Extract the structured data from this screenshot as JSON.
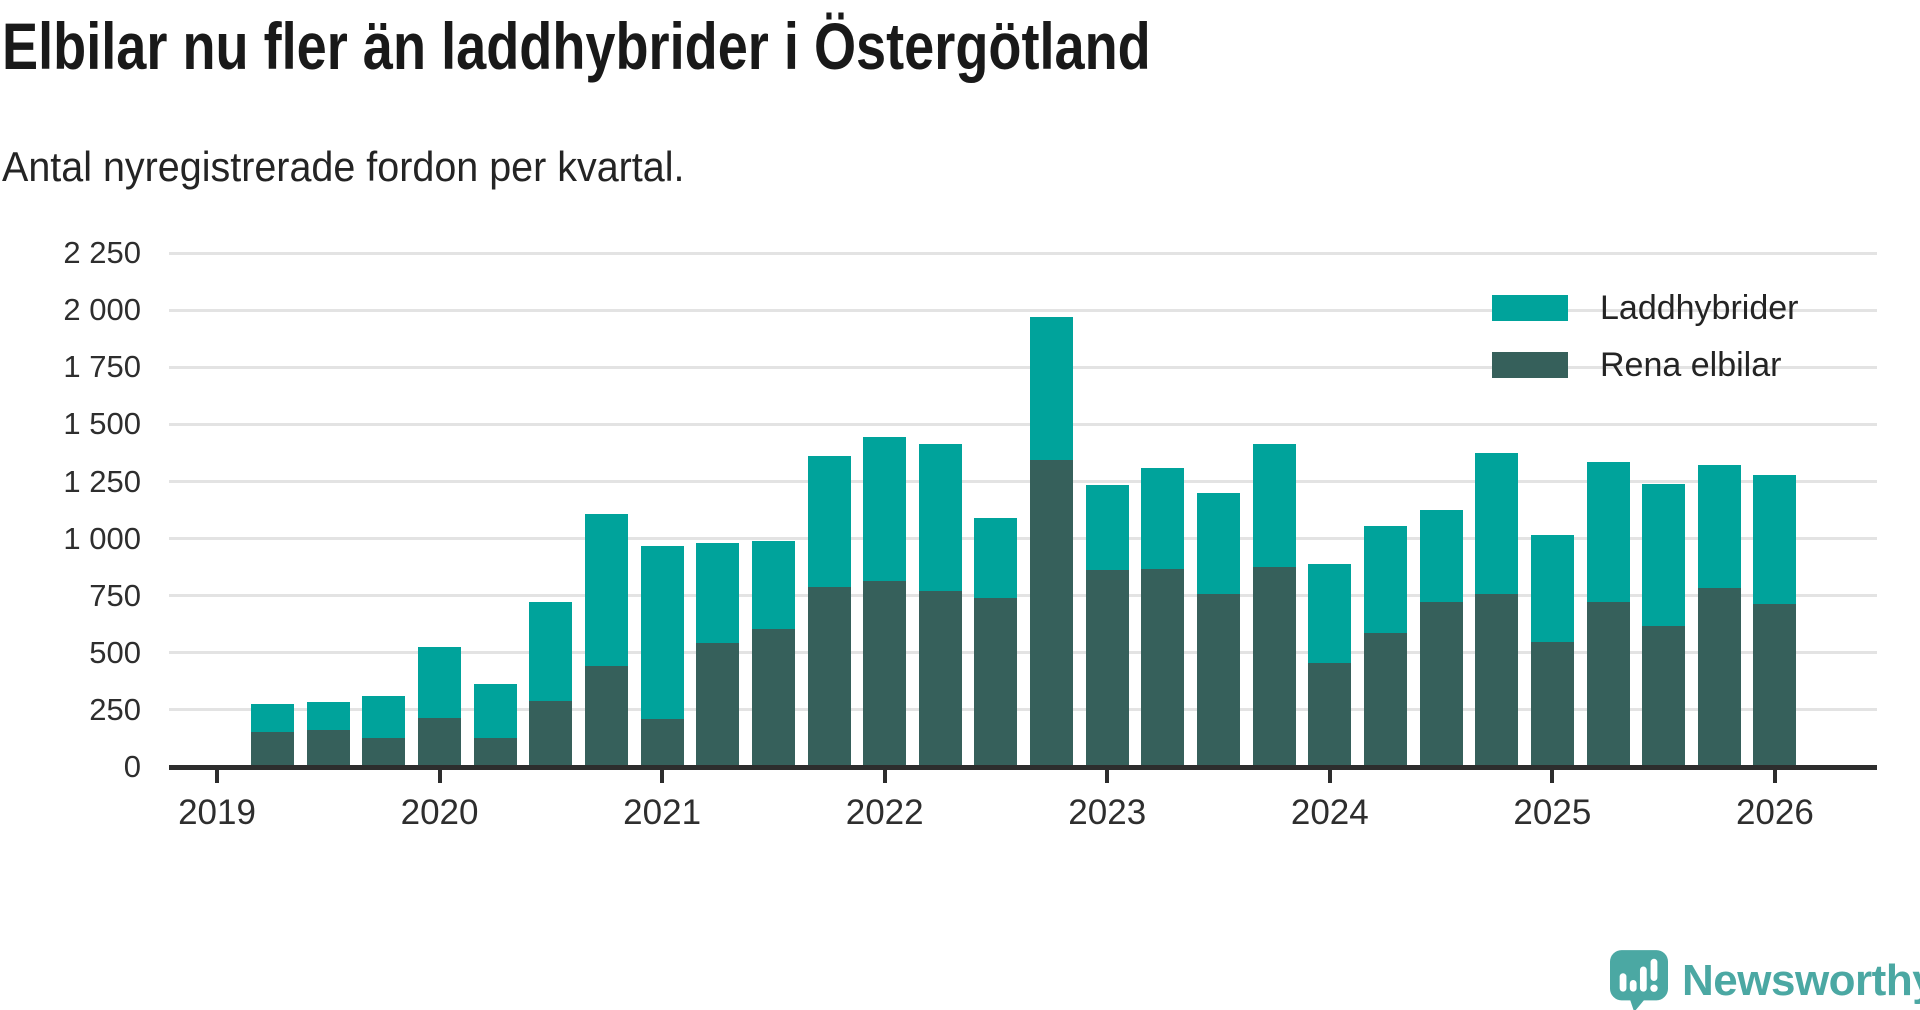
{
  "header": {
    "title": "Elbilar nu fler än laddhybrider i Östergötland",
    "subtitle": "Antal nyregistrerade fordon per kvartal."
  },
  "chart_data": {
    "type": "bar",
    "variant": "stacked-vertical",
    "title": "Elbilar nu fler än laddhybrider i Östergötland",
    "subtitle": "Antal nyregistrerade fordon per kvartal.",
    "categories": [
      "2019 Q2",
      "2019 Q3",
      "2019 Q4",
      "2020 Q1",
      "2020 Q2",
      "2020 Q3",
      "2020 Q4",
      "2021 Q1",
      "2021 Q2",
      "2021 Q3",
      "2021 Q4",
      "2022 Q1",
      "2022 Q2",
      "2022 Q3",
      "2022 Q4",
      "2023 Q1",
      "2023 Q2",
      "2023 Q3",
      "2023 Q4",
      "2024 Q1",
      "2024 Q2",
      "2024 Q3",
      "2024 Q4",
      "2025 Q1",
      "2025 Q2",
      "2025 Q3",
      "2025 Q4",
      "2026 Q1"
    ],
    "series": [
      {
        "name": "Laddhybrider",
        "color": "#00a39b",
        "stack_position": "top",
        "values": [
          120,
          120,
          180,
          310,
          235,
          435,
          665,
          760,
          435,
          385,
          575,
          630,
          645,
          350,
          625,
          370,
          440,
          440,
          540,
          435,
          465,
          400,
          615,
          465,
          610,
          620,
          540,
          565
        ]
      },
      {
        "name": "Rena elbilar",
        "color": "#36605b",
        "stack_position": "bottom",
        "values": [
          145,
          155,
          120,
          205,
          120,
          280,
          435,
          200,
          535,
          595,
          780,
          805,
          760,
          730,
          1335,
          855,
          860,
          750,
          865,
          445,
          580,
          715,
          750,
          540,
          715,
          610,
          775,
          705
        ]
      }
    ],
    "stacked_totals": [
      265,
      275,
      300,
      515,
      355,
      715,
      1100,
      960,
      970,
      980,
      1355,
      1435,
      1405,
      1080,
      1960,
      1225,
      1300,
      1190,
      1405,
      880,
      1045,
      1115,
      1365,
      1005,
      1325,
      1230,
      1315,
      1270
    ],
    "ylim": [
      0,
      2250
    ],
    "grid": "horizontal",
    "legend_position": "top-right",
    "y_ticks": [
      {
        "value": 0,
        "label": "0"
      },
      {
        "value": 250,
        "label": "250"
      },
      {
        "value": 500,
        "label": "500"
      },
      {
        "value": 750,
        "label": "750"
      },
      {
        "value": 1000,
        "label": "1 000"
      },
      {
        "value": 1250,
        "label": "1 250"
      },
      {
        "value": 1500,
        "label": "1 500"
      },
      {
        "value": 1750,
        "label": "1 750"
      },
      {
        "value": 2000,
        "label": "2 000"
      },
      {
        "value": 2250,
        "label": "2 250"
      }
    ],
    "x_ticks": [
      {
        "slot": 0,
        "label": "2019"
      },
      {
        "slot": 4,
        "label": "2020"
      },
      {
        "slot": 8,
        "label": "2021"
      },
      {
        "slot": 12,
        "label": "2022"
      },
      {
        "slot": 16,
        "label": "2023"
      },
      {
        "slot": 20,
        "label": "2024"
      },
      {
        "slot": 24,
        "label": "2025"
      },
      {
        "slot": 28,
        "label": "2026"
      }
    ],
    "colors": {
      "axis": "#2d2d2d",
      "gridline": "#e3e3e3",
      "text": "#2e2e2e",
      "laddhybrider": "#00a39b",
      "rena_elbilar": "#36605b"
    }
  },
  "footer": {
    "logo_text": "Newsworthy",
    "logo_color": "#4ba8a3"
  }
}
